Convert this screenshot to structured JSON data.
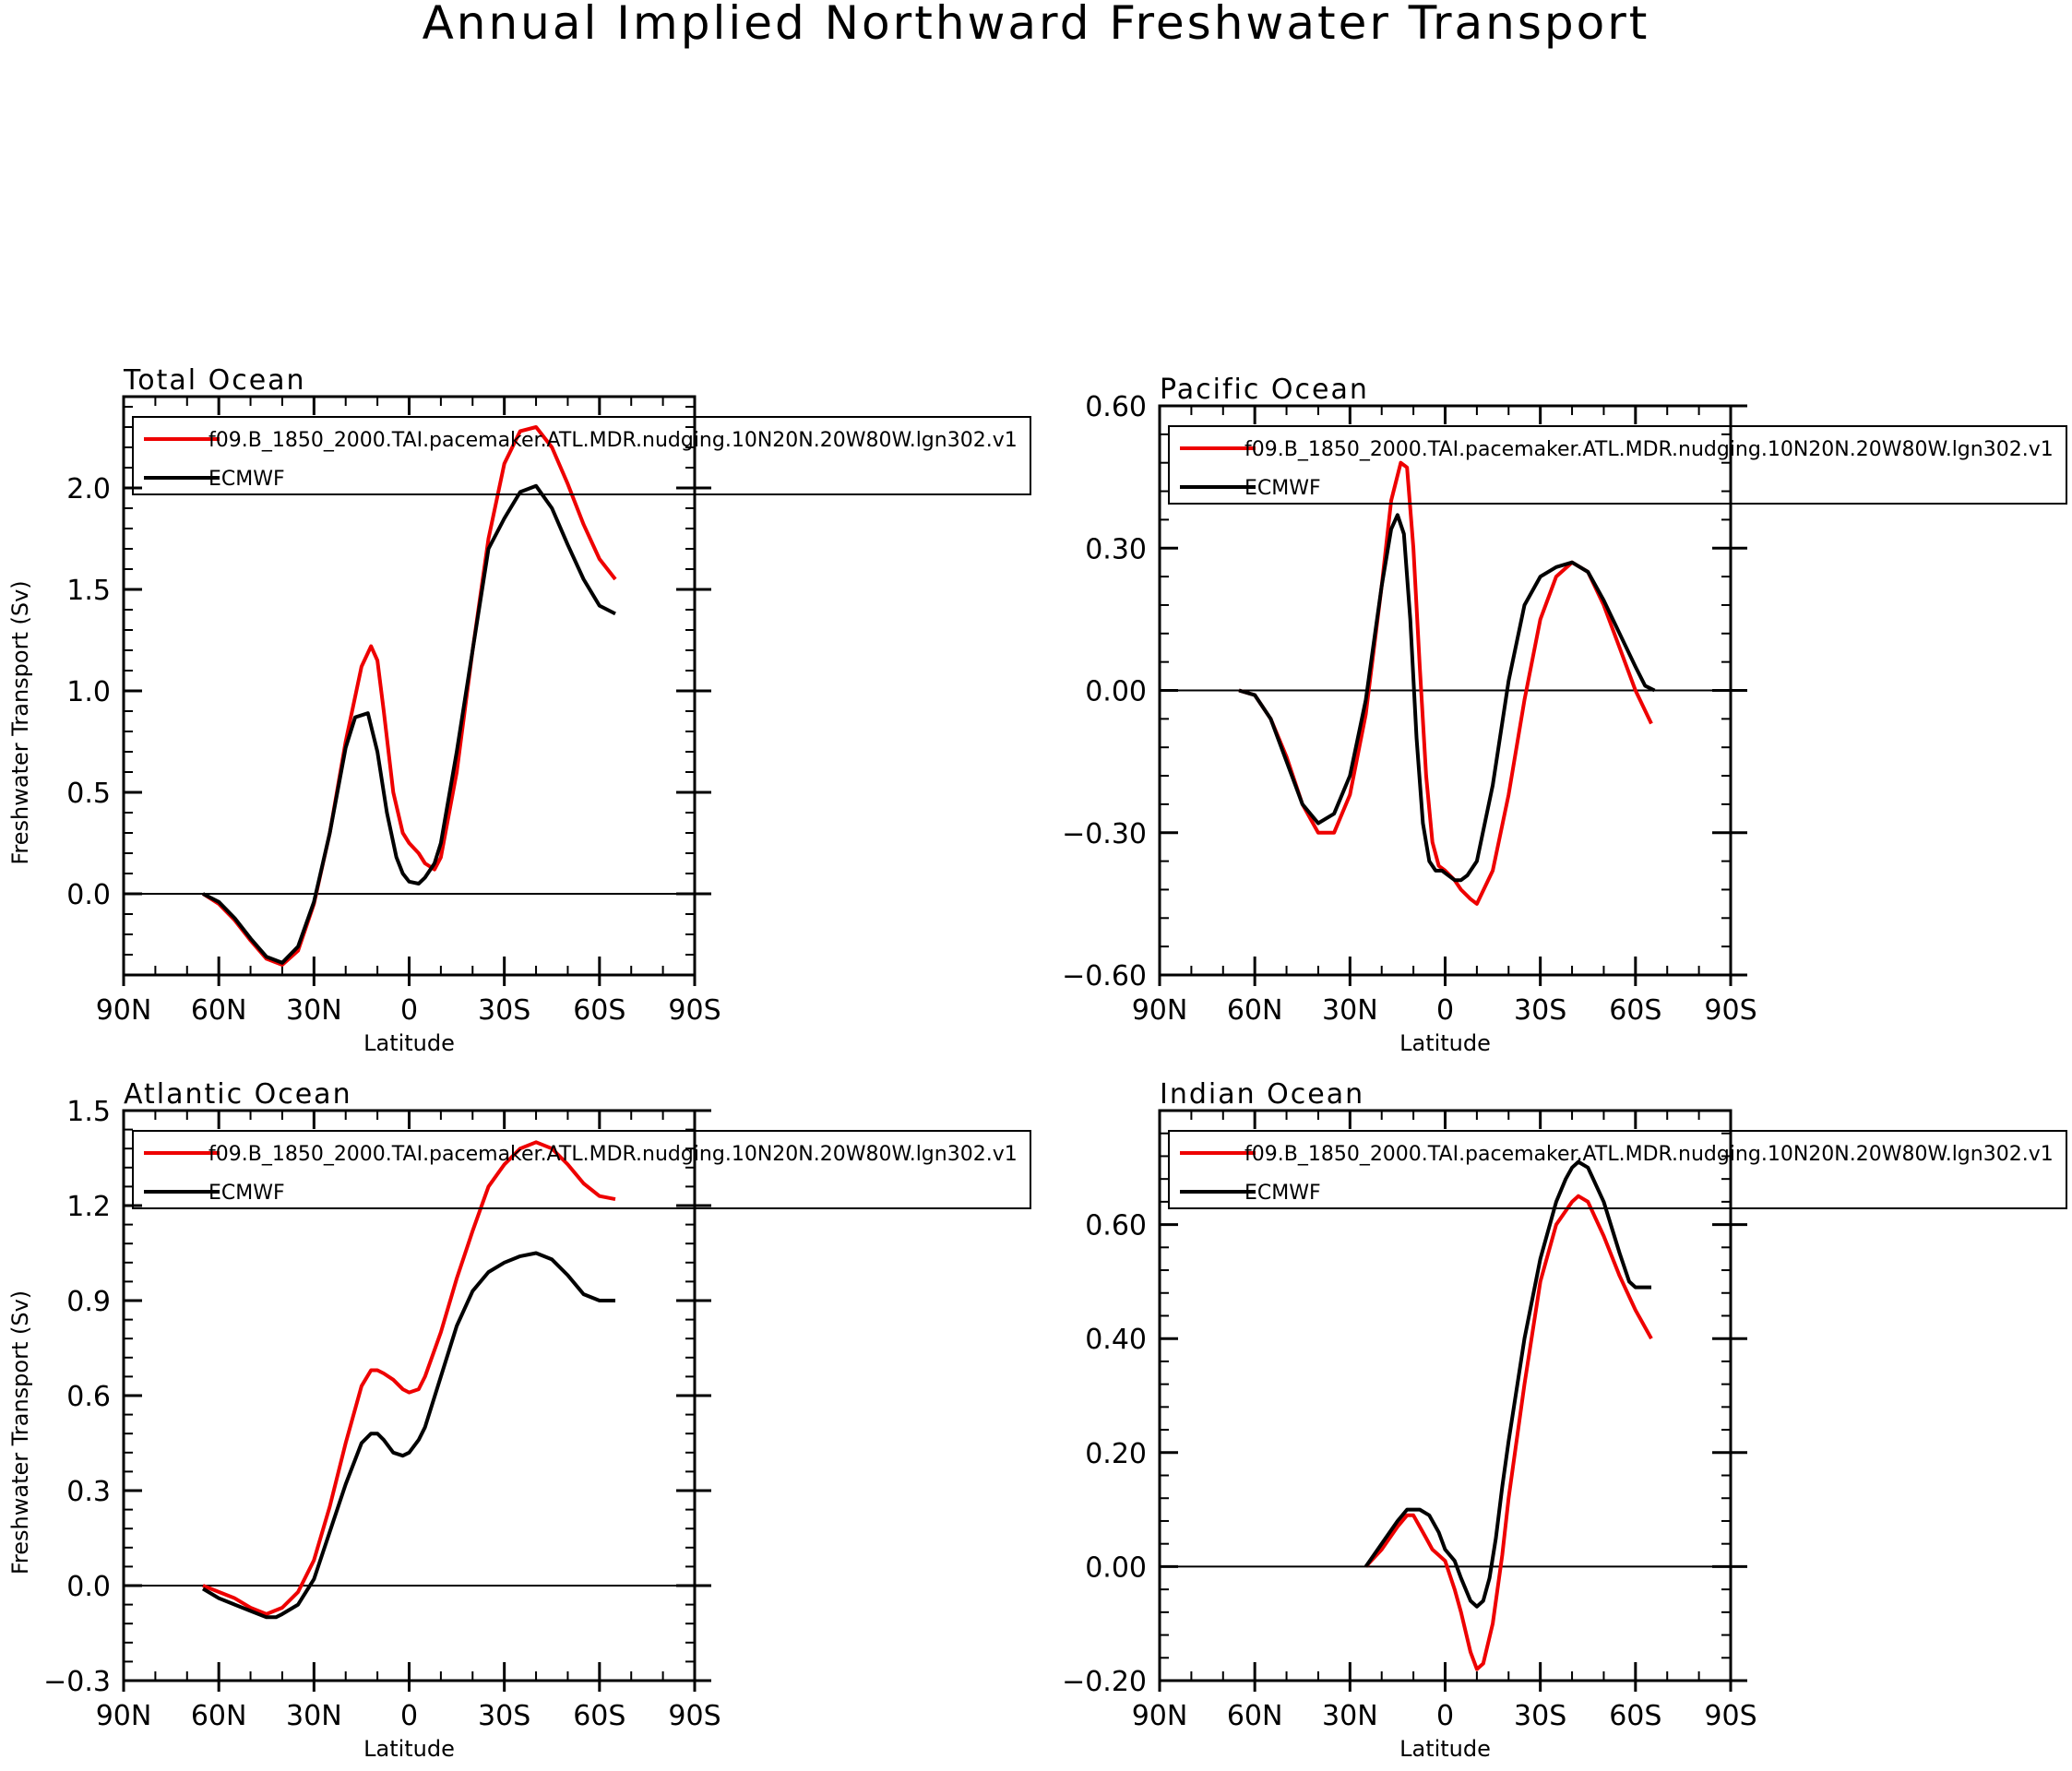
{
  "title": "Annual Implied Northward Freshwater Transport",
  "colors": {
    "model": "#ee0000",
    "obs": "#000000"
  },
  "chart_data": [
    {
      "type": "line",
      "title": "Total Ocean",
      "xlabel": "Latitude",
      "ylabel": "Freshwater Transport (Sv)",
      "xlim": [
        -90,
        90
      ],
      "ylim": [
        -0.4,
        2.45
      ],
      "xticks": [
        -90,
        -60,
        -30,
        0,
        30,
        60,
        90
      ],
      "xtick_labels": [
        "90N",
        "60N",
        "30N",
        "0",
        "30S",
        "60S",
        "90S"
      ],
      "yticks": [
        0.0,
        0.5,
        1.0,
        1.5,
        2.0
      ],
      "ytick_labels": [
        "0.0",
        "0.5",
        "1.0",
        "1.5",
        "2.0"
      ],
      "series": [
        {
          "name": "f09.B_1850_2000.TAI.pacemaker.ATL.MDR.nudging.10N20N.20W80W.lgn302.v1",
          "color": "#ee0000",
          "x": [
            -65,
            -60,
            -55,
            -50,
            -45,
            -40,
            -35,
            -30,
            -25,
            -20,
            -15,
            -12,
            -10,
            -8,
            -5,
            -2,
            0,
            3,
            5,
            8,
            10,
            15,
            20,
            25,
            30,
            35,
            40,
            45,
            50,
            55,
            60,
            65
          ],
          "y": [
            0.0,
            -0.05,
            -0.13,
            -0.23,
            -0.32,
            -0.35,
            -0.28,
            -0.05,
            0.3,
            0.75,
            1.12,
            1.22,
            1.15,
            0.9,
            0.5,
            0.3,
            0.25,
            0.2,
            0.15,
            0.12,
            0.18,
            0.6,
            1.2,
            1.75,
            2.12,
            2.28,
            2.3,
            2.2,
            2.02,
            1.82,
            1.65,
            1.55
          ]
        },
        {
          "name": "ECMWF",
          "color": "#000000",
          "x": [
            -65,
            -60,
            -55,
            -50,
            -45,
            -40,
            -35,
            -30,
            -25,
            -20,
            -17,
            -13,
            -10,
            -7,
            -4,
            -2,
            0,
            3,
            5,
            8,
            10,
            15,
            20,
            25,
            30,
            35,
            40,
            45,
            50,
            55,
            60,
            65
          ],
          "y": [
            0.0,
            -0.04,
            -0.12,
            -0.22,
            -0.31,
            -0.34,
            -0.26,
            -0.04,
            0.3,
            0.72,
            0.87,
            0.89,
            0.7,
            0.4,
            0.18,
            0.1,
            0.06,
            0.05,
            0.08,
            0.15,
            0.25,
            0.7,
            1.2,
            1.7,
            1.85,
            1.98,
            2.01,
            1.9,
            1.72,
            1.55,
            1.42,
            1.38
          ]
        }
      ],
      "legend_loc": "top"
    },
    {
      "type": "line",
      "title": "Pacific Ocean",
      "xlabel": "Latitude",
      "ylabel": "",
      "xlim": [
        -90,
        90
      ],
      "ylim": [
        -0.6,
        0.6
      ],
      "xticks": [
        -90,
        -60,
        -30,
        0,
        30,
        60,
        90
      ],
      "xtick_labels": [
        "90N",
        "60N",
        "30N",
        "0",
        "30S",
        "60S",
        "90S"
      ],
      "yticks": [
        -0.6,
        -0.3,
        0.0,
        0.3,
        0.6
      ],
      "ytick_labels": [
        "−0.60",
        "−0.30",
        "0.00",
        "0.30",
        "0.60"
      ],
      "series": [
        {
          "name": "f09.B_1850_2000.TAI.pacemaker.ATL.MDR.nudging.10N20N.20W80W.lgn302.v1",
          "color": "#ee0000",
          "x": [
            -65,
            -60,
            -55,
            -50,
            -45,
            -40,
            -35,
            -30,
            -25,
            -20,
            -17,
            -14,
            -12,
            -10,
            -8,
            -6,
            -4,
            -2,
            0,
            3,
            5,
            8,
            10,
            15,
            20,
            25,
            30,
            35,
            40,
            45,
            50,
            55,
            60,
            65
          ],
          "y": [
            0.0,
            -0.01,
            -0.06,
            -0.14,
            -0.24,
            -0.3,
            -0.3,
            -0.22,
            -0.05,
            0.22,
            0.4,
            0.48,
            0.47,
            0.3,
            0.05,
            -0.18,
            -0.32,
            -0.37,
            -0.38,
            -0.4,
            -0.42,
            -0.44,
            -0.45,
            -0.38,
            -0.22,
            -0.02,
            0.15,
            0.24,
            0.27,
            0.25,
            0.18,
            0.09,
            0.0,
            -0.07
          ]
        },
        {
          "name": "ECMWF",
          "color": "#000000",
          "x": [
            -65,
            -60,
            -55,
            -50,
            -45,
            -40,
            -35,
            -30,
            -25,
            -20,
            -17,
            -15,
            -13,
            -11,
            -9,
            -7,
            -5,
            -3,
            -1,
            1,
            3,
            5,
            7,
            10,
            15,
            20,
            25,
            30,
            35,
            40,
            45,
            50,
            55,
            60,
            63,
            66
          ],
          "y": [
            0.0,
            -0.01,
            -0.06,
            -0.15,
            -0.24,
            -0.28,
            -0.26,
            -0.18,
            -0.02,
            0.22,
            0.34,
            0.37,
            0.33,
            0.15,
            -0.1,
            -0.28,
            -0.36,
            -0.38,
            -0.38,
            -0.39,
            -0.4,
            -0.4,
            -0.39,
            -0.36,
            -0.2,
            0.02,
            0.18,
            0.24,
            0.26,
            0.27,
            0.25,
            0.19,
            0.12,
            0.05,
            0.01,
            0.0
          ]
        }
      ],
      "legend_loc": "top"
    },
    {
      "type": "line",
      "title": "Atlantic Ocean",
      "xlabel": "Latitude",
      "ylabel": "Freshwater Transport (Sv)",
      "xlim": [
        -90,
        90
      ],
      "ylim": [
        -0.3,
        1.5
      ],
      "xticks": [
        -90,
        -60,
        -30,
        0,
        30,
        60,
        90
      ],
      "xtick_labels": [
        "90N",
        "60N",
        "30N",
        "0",
        "30S",
        "60S",
        "90S"
      ],
      "yticks": [
        -0.3,
        0.0,
        0.3,
        0.6,
        0.9,
        1.2,
        1.5
      ],
      "ytick_labels": [
        "−0.3",
        "0.0",
        "0.3",
        "0.6",
        "0.9",
        "1.2",
        "1.5"
      ],
      "series": [
        {
          "name": "f09.B_1850_2000.TAI.pacemaker.ATL.MDR.nudging.10N20N.20W80W.lgn302.v1",
          "color": "#ee0000",
          "x": [
            -65,
            -60,
            -55,
            -50,
            -45,
            -40,
            -35,
            -30,
            -25,
            -20,
            -15,
            -12,
            -10,
            -8,
            -5,
            -2,
            0,
            3,
            5,
            10,
            15,
            20,
            25,
            30,
            35,
            40,
            45,
            50,
            55,
            60,
            65
          ],
          "y": [
            0.0,
            -0.02,
            -0.04,
            -0.07,
            -0.09,
            -0.07,
            -0.02,
            0.08,
            0.25,
            0.45,
            0.63,
            0.68,
            0.68,
            0.67,
            0.65,
            0.62,
            0.61,
            0.62,
            0.66,
            0.8,
            0.97,
            1.12,
            1.26,
            1.33,
            1.38,
            1.4,
            1.38,
            1.33,
            1.27,
            1.23,
            1.22
          ]
        },
        {
          "name": "ECMWF",
          "color": "#000000",
          "x": [
            -65,
            -60,
            -55,
            -50,
            -45,
            -42,
            -40,
            -35,
            -30,
            -25,
            -20,
            -15,
            -12,
            -10,
            -8,
            -5,
            -2,
            0,
            3,
            5,
            10,
            15,
            20,
            25,
            30,
            35,
            40,
            45,
            50,
            55,
            60,
            65
          ],
          "y": [
            -0.01,
            -0.04,
            -0.06,
            -0.08,
            -0.1,
            -0.1,
            -0.09,
            -0.06,
            0.02,
            0.17,
            0.32,
            0.45,
            0.48,
            0.48,
            0.46,
            0.42,
            0.41,
            0.42,
            0.46,
            0.5,
            0.66,
            0.82,
            0.93,
            0.99,
            1.02,
            1.04,
            1.05,
            1.03,
            0.98,
            0.92,
            0.9,
            0.9
          ]
        }
      ],
      "legend_loc": "top"
    },
    {
      "type": "line",
      "title": "Indian Ocean",
      "xlabel": "Latitude",
      "ylabel": "",
      "xlim": [
        -90,
        90
      ],
      "ylim": [
        -0.2,
        0.8
      ],
      "xticks": [
        -90,
        -60,
        -30,
        0,
        30,
        60,
        90
      ],
      "xtick_labels": [
        "90N",
        "60N",
        "30N",
        "0",
        "30S",
        "60S",
        "90S"
      ],
      "yticks": [
        -0.2,
        0.0,
        0.2,
        0.4,
        0.6
      ],
      "ytick_labels": [
        "−0.20",
        "0.00",
        "0.20",
        "0.40",
        "0.60"
      ],
      "series": [
        {
          "name": "f09.B_1850_2000.TAI.pacemaker.ATL.MDR.nudging.10N20N.20W80W.lgn302.v1",
          "color": "#ee0000",
          "x": [
            -25,
            -20,
            -15,
            -12,
            -10,
            -8,
            -6,
            -4,
            -2,
            0,
            3,
            5,
            8,
            10,
            12,
            15,
            18,
            20,
            25,
            30,
            35,
            40,
            42,
            45,
            50,
            55,
            60,
            65
          ],
          "y": [
            0.0,
            0.03,
            0.07,
            0.09,
            0.09,
            0.07,
            0.05,
            0.03,
            0.02,
            0.01,
            -0.04,
            -0.08,
            -0.15,
            -0.18,
            -0.17,
            -0.1,
            0.02,
            0.12,
            0.32,
            0.5,
            0.6,
            0.64,
            0.65,
            0.64,
            0.58,
            0.51,
            0.45,
            0.4
          ]
        },
        {
          "name": "ECMWF",
          "color": "#000000",
          "x": [
            -25,
            -20,
            -15,
            -12,
            -10,
            -8,
            -5,
            -2,
            0,
            3,
            5,
            8,
            10,
            12,
            14,
            16,
            18,
            20,
            25,
            30,
            35,
            38,
            40,
            42,
            45,
            50,
            55,
            58,
            60,
            65
          ],
          "y": [
            0.0,
            0.04,
            0.08,
            0.1,
            0.1,
            0.1,
            0.09,
            0.06,
            0.03,
            0.01,
            -0.02,
            -0.06,
            -0.07,
            -0.06,
            -0.02,
            0.05,
            0.14,
            0.22,
            0.4,
            0.54,
            0.64,
            0.68,
            0.7,
            0.71,
            0.7,
            0.64,
            0.55,
            0.5,
            0.49,
            0.49
          ]
        }
      ],
      "legend_loc": "top"
    }
  ]
}
